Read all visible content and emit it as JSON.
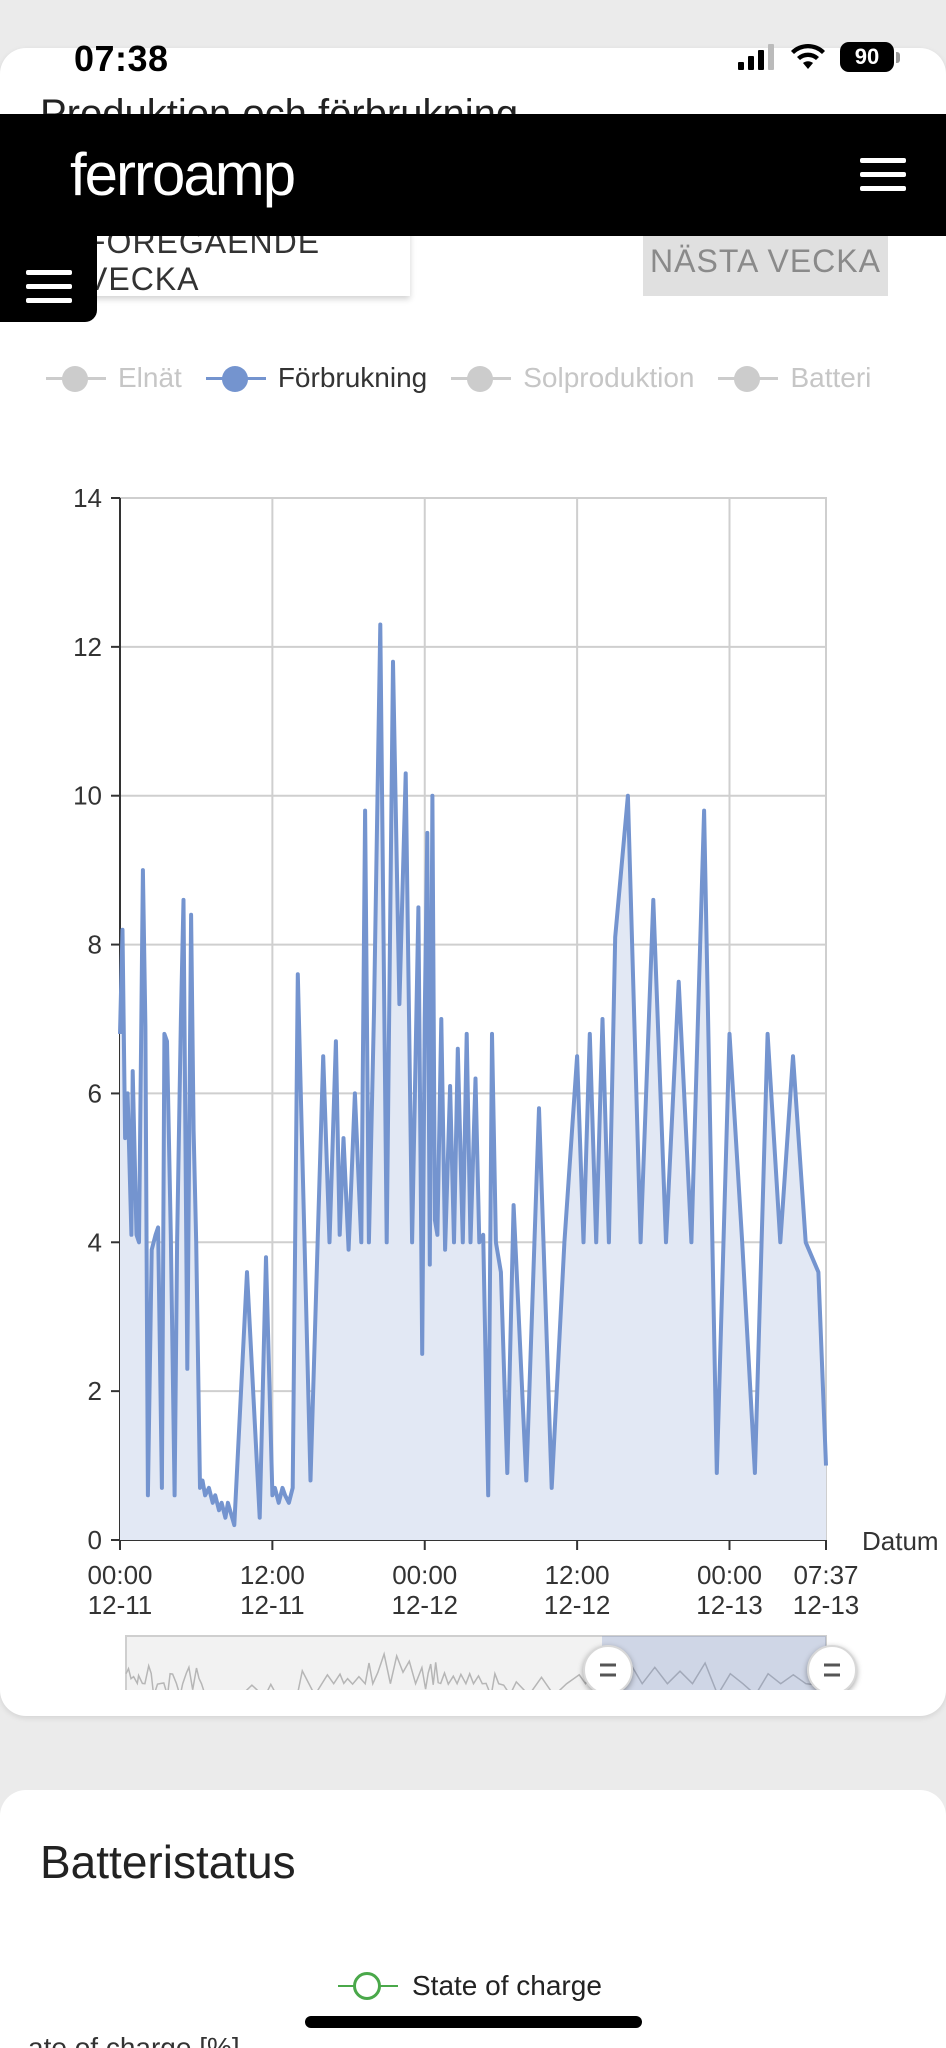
{
  "status_bar": {
    "time": "07:38",
    "battery_level": "90"
  },
  "page": {
    "title": "Produktion och förbrukning"
  },
  "header": {
    "logo_light": "ferro",
    "logo_bold": "amp"
  },
  "week_nav": {
    "prev_label": "FÖREGÅENDE VECKA",
    "next_label": "NÄSTA VECKA"
  },
  "legend": {
    "items": [
      {
        "label": "Elnät",
        "active": false,
        "color": "#cccccc"
      },
      {
        "label": "Förbrukning",
        "active": true,
        "color": "#7494cf"
      },
      {
        "label": "Solproduktion",
        "active": false,
        "color": "#cccccc"
      },
      {
        "label": "Batteri",
        "active": false,
        "color": "#cccccc"
      }
    ]
  },
  "chart_data": {
    "type": "area",
    "title": "",
    "xlabel": "Datum",
    "ylabel": "",
    "ylim": [
      0,
      14
    ],
    "yticks": [
      0,
      2,
      4,
      6,
      8,
      10,
      12,
      14
    ],
    "xticks": [
      {
        "time": "00:00",
        "date": "12-11"
      },
      {
        "time": "12:00",
        "date": "12-11"
      },
      {
        "time": "00:00",
        "date": "12-12"
      },
      {
        "time": "12:00",
        "date": "12-12"
      },
      {
        "time": "00:00",
        "date": "12-13"
      },
      {
        "time": "07:37",
        "date": "12-13"
      }
    ],
    "grid": true,
    "series": [
      {
        "name": "Förbrukning",
        "color": "#7494cf",
        "fill": "#e2e8f4",
        "x_hours": [
          0.0,
          0.2,
          0.4,
          0.6,
          0.9,
          1.0,
          1.3,
          1.5,
          1.8,
          2.0,
          2.2,
          2.5,
          2.8,
          3.0,
          3.3,
          3.5,
          3.7,
          4.0,
          4.3,
          4.5,
          4.8,
          5.0,
          5.3,
          5.6,
          5.8,
          6.0,
          6.3,
          6.5,
          6.7,
          7.0,
          7.3,
          7.5,
          7.8,
          8.0,
          8.3,
          8.5,
          9.0,
          10.0,
          11.0,
          11.5,
          12.0,
          12.2,
          12.5,
          12.8,
          13.0,
          13.3,
          13.6,
          14.0,
          15.0,
          16.0,
          16.5,
          17.0,
          17.3,
          17.6,
          18.0,
          18.5,
          19.0,
          19.3,
          19.6,
          20.0,
          20.5,
          21.0,
          21.5,
          22.0,
          22.5,
          23.0,
          23.5,
          23.8,
          24.0,
          24.2,
          24.4,
          24.6,
          24.8,
          25.0,
          25.3,
          25.6,
          26.0,
          26.3,
          26.6,
          27.0,
          27.3,
          27.6,
          28.0,
          28.3,
          28.6,
          29.0,
          29.3,
          29.6,
          30.0,
          30.5,
          31.0,
          32.0,
          33.0,
          34.0,
          35.0,
          36.0,
          36.5,
          37.0,
          37.5,
          38.0,
          38.5,
          39.0,
          40.0,
          41.0,
          42.0,
          43.0,
          44.0,
          45.0,
          46.0,
          47.0,
          48.0,
          49.0,
          50.0,
          51.0,
          52.0,
          53.0,
          54.0,
          55.0,
          55.6
        ],
        "values": [
          6.8,
          8.2,
          5.4,
          6.0,
          4.1,
          6.3,
          4.1,
          4.0,
          9.0,
          6.9,
          0.6,
          3.9,
          4.1,
          4.2,
          0.7,
          6.8,
          6.7,
          4.1,
          0.6,
          4.0,
          7.0,
          8.6,
          2.3,
          8.4,
          5.5,
          4.0,
          0.7,
          0.8,
          0.6,
          0.7,
          0.5,
          0.6,
          0.4,
          0.5,
          0.3,
          0.5,
          0.2,
          3.6,
          0.3,
          3.8,
          0.6,
          0.7,
          0.5,
          0.7,
          0.6,
          0.5,
          0.7,
          7.6,
          0.8,
          6.5,
          4.0,
          6.7,
          4.1,
          5.4,
          3.9,
          6.0,
          4.0,
          9.8,
          4.0,
          7.1,
          12.3,
          4.0,
          11.8,
          7.2,
          10.3,
          4.0,
          8.5,
          2.5,
          7.0,
          9.5,
          3.7,
          10.0,
          4.3,
          4.1,
          7.0,
          3.9,
          6.1,
          4.0,
          6.6,
          4.0,
          6.8,
          4.0,
          6.2,
          4.0,
          4.1,
          0.6,
          6.8,
          4.0,
          3.6,
          0.9,
          4.5,
          0.8,
          5.8,
          0.7,
          4.0,
          6.5,
          4.0,
          6.8,
          4.0,
          7.0,
          4.0,
          8.1,
          10.0,
          4.0,
          8.6,
          4.0,
          7.5,
          4.0,
          9.8,
          0.9,
          6.8,
          4.0,
          0.9,
          6.8,
          4.0,
          6.5,
          4.0,
          3.6,
          1.0
        ]
      }
    ],
    "navigator": {
      "range_start_fraction": 0.68,
      "range_end_fraction": 1.0
    }
  },
  "battery": {
    "title": "Batteristatus",
    "legend_label": "State of charge",
    "axis_label_partial": "ate of charge [%]"
  }
}
